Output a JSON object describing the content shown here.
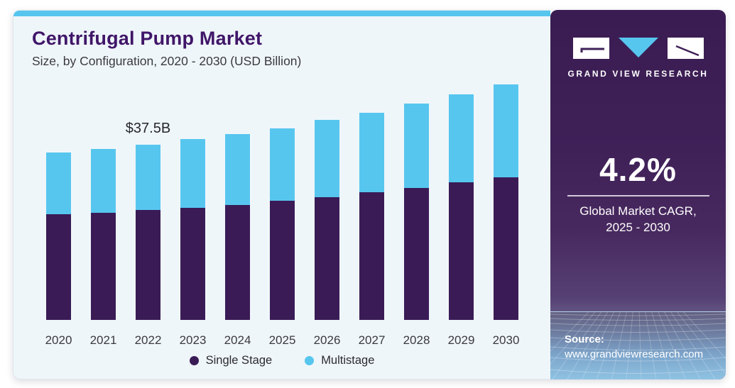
{
  "header": {
    "title": "Centrifugal Pump Market",
    "subtitle": "Size, by Configuration, 2020 - 2030 (USD Billion)"
  },
  "chart_data": {
    "type": "bar",
    "stacked": true,
    "unit": "USD Billion",
    "categories": [
      "2020",
      "2021",
      "2022",
      "2023",
      "2024",
      "2025",
      "2026",
      "2027",
      "2028",
      "2029",
      "2030"
    ],
    "series": [
      {
        "name": "Single Stage",
        "color": "#3a1b56",
        "values": [
          22.7,
          23.0,
          23.5,
          24.0,
          24.7,
          25.5,
          26.3,
          27.3,
          28.3,
          29.5,
          30.6
        ]
      },
      {
        "name": "Multistage",
        "color": "#57c6ef",
        "values": [
          13.1,
          13.7,
          14.0,
          14.7,
          15.2,
          15.5,
          16.5,
          17.1,
          18.1,
          18.9,
          19.8
        ]
      }
    ],
    "annotation": {
      "text": "$37.5B",
      "category": "2022",
      "value": 37.5
    },
    "legend_position": "bottom",
    "grid": false,
    "y_axis_shown": false
  },
  "sidebar": {
    "logo_text": "GRAND VIEW RESEARCH",
    "cagr_value": "4.2%",
    "cagr_line1": "Global Market CAGR,",
    "cagr_line2": "2025 - 2030",
    "source_label": "Source:",
    "source_url": "www.grandviewresearch.com"
  },
  "colors": {
    "accent_blue": "#57c6ef",
    "bar_purple": "#3a1b56",
    "panel_bg": "#eff6fa",
    "sidebar_purple": "#3f2158",
    "title_purple": "#401668"
  }
}
